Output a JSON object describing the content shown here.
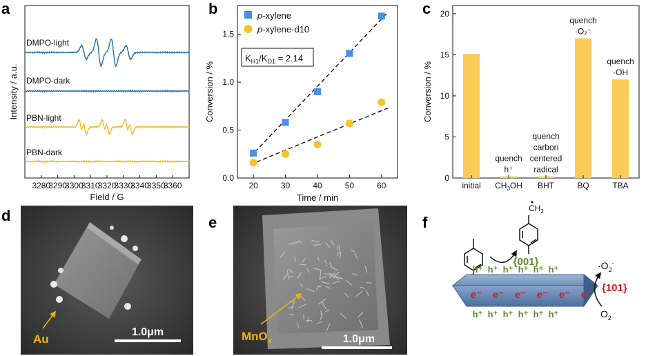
{
  "colors": {
    "epr_blue": "#2470a8",
    "epr_yellow": "#f2bc1b",
    "pxylene": "#4a90e2",
    "pxylene_d10": "#f6c32b",
    "bar": "#fbcb57",
    "green": "#5a8a2e",
    "red": "#c81e1e",
    "label_orange": "#f5b400"
  },
  "panels": {
    "a": {
      "letter": "a",
      "curves": [
        "DMPO-light",
        "DMPO-dark",
        "PBN-light",
        "PBN-dark"
      ]
    },
    "b": {
      "letter": "b",
      "annotation": "K",
      "ann_sub1": "H1",
      "ann_mid": "/K",
      "ann_sub2": "D1",
      "ann_end": " = 2.14"
    },
    "c": {
      "letter": "c"
    },
    "d": {
      "letter": "d",
      "label": "Au",
      "scalebar": "1.0μm"
    },
    "e": {
      "letter": "e",
      "label": "MnO",
      "label_sub": "x",
      "scalebar": "1.0μm"
    },
    "f": {
      "letter": "f",
      "top_facet": "{001}",
      "side_facet": "{101}",
      "holes": [
        "h⁺",
        "h⁺",
        "h⁺",
        "h⁺",
        "h⁺",
        "h⁺"
      ],
      "electrons": [
        "e⁻",
        "e⁻",
        "e⁻",
        "e⁻",
        "e⁻",
        "e⁻"
      ],
      "superoxide": "·O",
      "superoxide_sub": "2",
      "superoxide_sup": "-",
      "oxygen": "O",
      "oxygen_sub": "2",
      "radical_label": "CH",
      "radical_sub": "2"
    }
  },
  "chart_data": [
    {
      "type": "line",
      "panel": "a",
      "xlabel": "Field / G",
      "ylabel": "Intensity / a.u.",
      "xlim": [
        3270,
        3370
      ],
      "xticks": [
        3280,
        3290,
        3300,
        3310,
        3320,
        3330,
        3340,
        3350,
        3360
      ],
      "series": [
        {
          "name": "DMPO-light",
          "color": "#2470a8"
        },
        {
          "name": "DMPO-dark",
          "color": "#2470a8"
        },
        {
          "name": "PBN-light",
          "color": "#f2bc1b"
        },
        {
          "name": "PBN-dark",
          "color": "#f2bc1b"
        }
      ]
    },
    {
      "type": "scatter",
      "panel": "b",
      "xlabel": "Time / min",
      "ylabel": "Conversion / %",
      "xlim": [
        15,
        65
      ],
      "ylim": [
        0,
        1.8
      ],
      "xticks": [
        20,
        30,
        40,
        50,
        60
      ],
      "yticks": [
        0.0,
        0.5,
        1.0,
        1.5
      ],
      "legend_position": "top-left",
      "series": [
        {
          "name": "p-xylene",
          "prefix": "p",
          "suffix": "-xylene",
          "marker": "square",
          "color": "#4a90e2",
          "x": [
            20,
            30,
            40,
            50,
            60
          ],
          "y": [
            0.26,
            0.58,
            0.9,
            1.3,
            1.69
          ]
        },
        {
          "name": "p-xylene-d10",
          "prefix": "p",
          "suffix": "-xylene-d10",
          "marker": "circle",
          "color": "#f6c32b",
          "x": [
            20,
            30,
            40,
            50,
            60
          ],
          "y": [
            0.16,
            0.25,
            0.35,
            0.57,
            0.79
          ]
        }
      ],
      "fits": [
        {
          "x": [
            19,
            62
          ],
          "y": [
            0.22,
            1.73
          ]
        },
        {
          "x": [
            19,
            62
          ],
          "y": [
            0.14,
            0.73
          ]
        }
      ]
    },
    {
      "type": "bar",
      "panel": "c",
      "ylabel": "Conversion / %",
      "ylim": [
        0,
        21
      ],
      "yticks": [
        0,
        5,
        10,
        15,
        20
      ],
      "categories": [
        "initial",
        "CH3OH",
        "BHT",
        "BQ",
        "TBA"
      ],
      "values": [
        15.1,
        0.2,
        0.2,
        17.0,
        12.0
      ],
      "bar_labels": [
        [],
        [
          "quench",
          "h⁺"
        ],
        [
          "quench",
          "carbon",
          "centered",
          "radical"
        ],
        [
          "quench",
          "·O₂⁻"
        ],
        [
          "quench",
          "·OH"
        ]
      ]
    }
  ]
}
